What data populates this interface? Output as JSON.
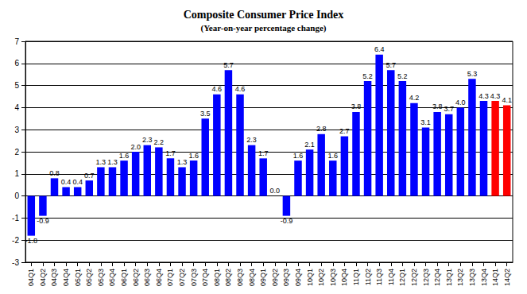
{
  "chart_data": {
    "type": "bar",
    "title": "Composite Consumer Price Index",
    "subtitle": "(Year-on-year percentage change)",
    "categories": [
      "04Q1",
      "04Q2",
      "04Q3",
      "04Q4",
      "05Q1",
      "05Q2",
      "05Q3",
      "05Q4",
      "06Q1",
      "06Q2",
      "06Q3",
      "06Q4",
      "07Q1",
      "07Q2",
      "07Q3",
      "07Q4",
      "08Q1",
      "08Q2",
      "08Q3",
      "08Q4",
      "09Q1",
      "09Q2",
      "09Q3",
      "09Q4",
      "10Q1",
      "10Q2",
      "10Q3",
      "10Q4",
      "11Q1",
      "11Q2",
      "11Q3",
      "11Q4",
      "12Q1",
      "12Q2",
      "12Q3",
      "12Q4",
      "13Q1",
      "13Q2",
      "13Q3",
      "13Q4",
      "14Q1",
      "14Q2"
    ],
    "values": [
      -1.8,
      -0.9,
      0.8,
      0.4,
      0.4,
      0.7,
      1.3,
      1.3,
      1.6,
      2.0,
      2.3,
      2.2,
      1.7,
      1.3,
      1.6,
      3.5,
      4.6,
      5.7,
      4.6,
      2.3,
      1.7,
      0.0,
      -0.9,
      1.6,
      2.1,
      2.8,
      1.6,
      2.7,
      3.8,
      5.2,
      6.4,
      5.7,
      5.2,
      4.2,
      3.1,
      3.8,
      3.7,
      4.0,
      5.3,
      4.3,
      4.3,
      4.1
    ],
    "value_labels": [
      "-1.8",
      "-0.9",
      "0.8",
      "0.4",
      "0.4",
      "0.7",
      "1.3",
      "1.3",
      "1.6",
      "2.0",
      "2.3",
      "2.2",
      "1.7",
      "1.3",
      "1.6",
      "3.5",
      "4.6",
      "5.7",
      "4.6",
      "2.3",
      "1.7",
      "0.0",
      "-0.9",
      "1.6",
      "2.1",
      "2.8",
      "1.6",
      "2.7",
      "3.8",
      "5.2",
      "6.4",
      "5.7",
      "5.2",
      "4.2",
      "3.1",
      "3.8",
      "3.7",
      "4.0",
      "5.3",
      "4.3",
      "4.3",
      "4.1"
    ],
    "colors": [
      "#0000ff",
      "#0000ff",
      "#0000ff",
      "#0000ff",
      "#0000ff",
      "#0000ff",
      "#0000ff",
      "#0000ff",
      "#0000ff",
      "#0000ff",
      "#0000ff",
      "#0000ff",
      "#0000ff",
      "#0000ff",
      "#0000ff",
      "#0000ff",
      "#0000ff",
      "#0000ff",
      "#0000ff",
      "#0000ff",
      "#0000ff",
      "#0000ff",
      "#0000ff",
      "#0000ff",
      "#0000ff",
      "#0000ff",
      "#0000ff",
      "#0000ff",
      "#0000ff",
      "#0000ff",
      "#0000ff",
      "#0000ff",
      "#0000ff",
      "#0000ff",
      "#0000ff",
      "#0000ff",
      "#0000ff",
      "#0000ff",
      "#0000ff",
      "#0000ff",
      "#ff0000",
      "#ff0000"
    ],
    "ylim": [
      -3,
      7
    ],
    "yticks": [
      -3,
      -2,
      -1,
      0,
      1,
      2,
      3,
      4,
      5,
      6,
      7
    ],
    "grid": true,
    "data_labels": true
  }
}
